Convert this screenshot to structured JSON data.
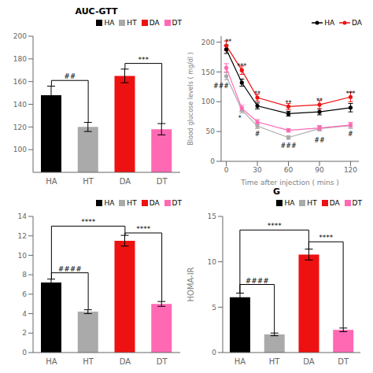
{
  "chart_data": [
    {
      "type": "bar",
      "title": "AUC-GTT",
      "categories": [
        "HA",
        "HT",
        "DA",
        "DT"
      ],
      "values": [
        148,
        120,
        165,
        118
      ],
      "errors": [
        8,
        4,
        6,
        5
      ],
      "colors": [
        "#000000",
        "#aaaaaa",
        "#ee1111",
        "#ff69b4"
      ],
      "ylim": [
        80,
        200
      ],
      "yticks": [
        100,
        120,
        140,
        160,
        180,
        200
      ],
      "legend": "upper right",
      "annotations": [
        {
          "text": "##",
          "from": "HA",
          "to": "HT",
          "y": 161
        },
        {
          "text": "***",
          "from": "DA",
          "to": "DT",
          "y": 176
        }
      ]
    },
    {
      "type": "line",
      "xlabel": "Time after injection ( mins )",
      "ylabel": "Blood glucose levels ( mg/dl )",
      "x": [
        0,
        15,
        30,
        60,
        90,
        120
      ],
      "series": [
        {
          "name": "HA",
          "color": "#000000",
          "values": [
            188,
            132,
            93,
            80,
            83,
            90
          ],
          "errors": [
            7,
            6,
            5,
            4,
            5,
            7
          ]
        },
        {
          "name": "DA",
          "color": "#ee1111",
          "values": [
            194,
            153,
            107,
            92,
            95,
            108
          ],
          "errors": [
            8,
            7,
            6,
            5,
            7,
            8
          ]
        },
        {
          "color": "#aaaaaa",
          "values": [
            143,
            86,
            59,
            40,
            55,
            60
          ],
          "errors": [
            6,
            5,
            4,
            3,
            4,
            5
          ]
        },
        {
          "color": "#ff69b4",
          "values": [
            157,
            89,
            66,
            52,
            56,
            61
          ],
          "errors": [
            7,
            5,
            4,
            3,
            4,
            4
          ]
        }
      ],
      "marker": "circle",
      "xlim": [
        -5,
        128
      ],
      "xticks": [
        0,
        30,
        60,
        90,
        120
      ],
      "ylim": [
        0,
        210
      ],
      "yticks": [
        0,
        50,
        100,
        150,
        200
      ],
      "legend": "upper right",
      "annotations": [
        {
          "text": "**",
          "x": 2,
          "y": 201
        },
        {
          "text": "###",
          "x": -5,
          "y": 127
        },
        {
          "text": "***",
          "x": 15,
          "y": 160
        },
        {
          "text": "*",
          "x": 13,
          "y": 73
        },
        {
          "text": "#",
          "x": 30,
          "y": 46
        },
        {
          "text": "**",
          "x": 30,
          "y": 113
        },
        {
          "text": "**",
          "x": 60,
          "y": 98
        },
        {
          "text": "###",
          "x": 60,
          "y": 26
        },
        {
          "text": "**",
          "x": 90,
          "y": 101
        },
        {
          "text": "##",
          "x": 90,
          "y": 36
        },
        {
          "text": "***",
          "x": 120,
          "y": 114
        },
        {
          "text": "#",
          "x": 120,
          "y": 46
        }
      ]
    },
    {
      "type": "bar",
      "categories": [
        "HA",
        "HT",
        "DA",
        "DT"
      ],
      "values": [
        7.2,
        4.2,
        11.5,
        5.0
      ],
      "errors": [
        0.35,
        0.2,
        0.55,
        0.25
      ],
      "colors": [
        "#000000",
        "#aaaaaa",
        "#ee1111",
        "#ff69b4"
      ],
      "ylim": [
        0,
        14
      ],
      "yticks": [
        0,
        2,
        4,
        6,
        8,
        10,
        12,
        14
      ],
      "legend": "upper right",
      "annotations": [
        {
          "text": "####",
          "from": "HA",
          "to": "HT",
          "y": 8.2
        },
        {
          "text": "****",
          "from": "HA",
          "to": "DA",
          "y": 13.0
        },
        {
          "text": "****",
          "from": "DA",
          "to": "DT",
          "y": 12.3
        }
      ]
    },
    {
      "type": "bar",
      "title": "G",
      "categories": [
        "HA",
        "HT",
        "DA",
        "DT"
      ],
      "values": [
        6.1,
        2.0,
        10.8,
        2.5
      ],
      "errors": [
        0.45,
        0.15,
        0.6,
        0.2
      ],
      "colors": [
        "#000000",
        "#aaaaaa",
        "#ee1111",
        "#ff69b4"
      ],
      "ylabel": "HOMA-IR",
      "ylim": [
        0,
        15
      ],
      "yticks": [
        0,
        5,
        10,
        15
      ],
      "legend": "upper right",
      "annotations": [
        {
          "text": "####",
          "from": "HA",
          "to": "HT",
          "y": 7.5
        },
        {
          "text": "****",
          "from": "HA",
          "to": "DA",
          "y": 13.5
        },
        {
          "text": "****",
          "from": "DA",
          "to": "DT",
          "y": 12.2
        }
      ]
    }
  ]
}
